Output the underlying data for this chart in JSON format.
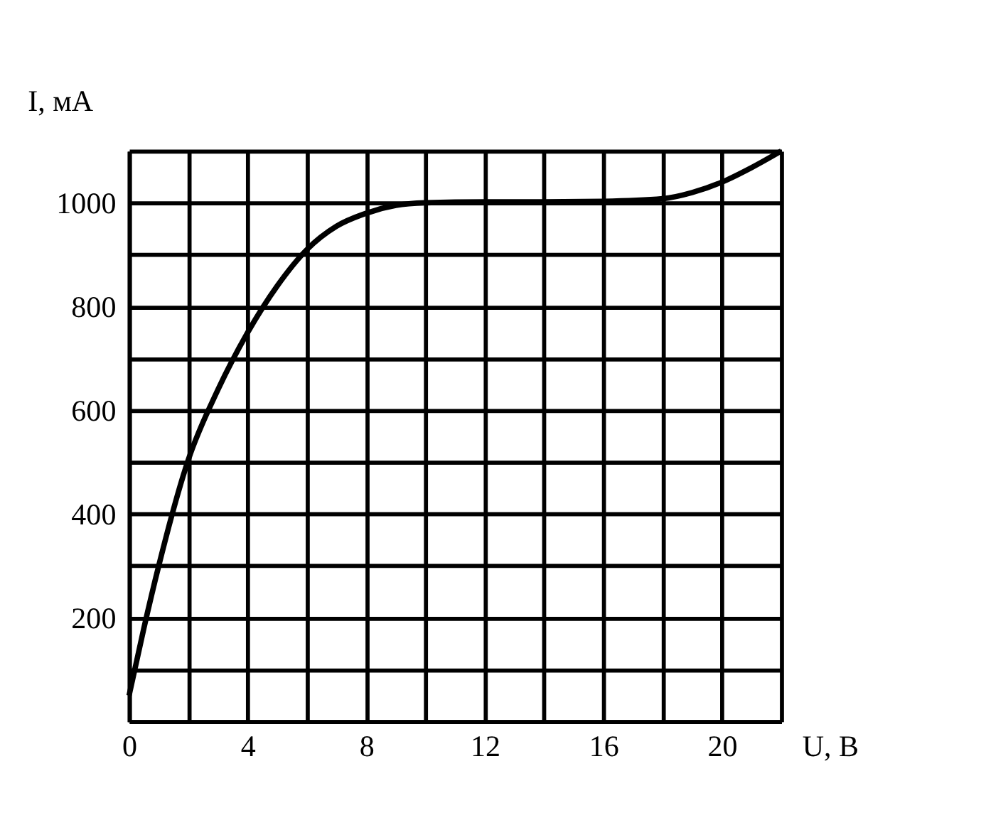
{
  "chart_data": {
    "type": "line",
    "xlabel": "U, В",
    "ylabel": "I, мА",
    "x": [
      0,
      0.5,
      1,
      2,
      3,
      4,
      5,
      6,
      7,
      8,
      9,
      10,
      12,
      14,
      16,
      18,
      19,
      20,
      21,
      22
    ],
    "series": [
      {
        "color": "#000000",
        "values": [
          50,
          180,
          300,
          505,
          640,
          750,
          840,
          910,
          955,
          980,
          995,
          1000,
          1002,
          1002,
          1003,
          1008,
          1020,
          1040,
          1068,
          1100
        ]
      }
    ],
    "xlim": [
      0,
      22
    ],
    "ylim": [
      0,
      1100
    ],
    "xticks": [
      0,
      {
        "value": 2,
        "label": null
      },
      4,
      {
        "value": 6,
        "label": null
      },
      8,
      {
        "value": 10,
        "label": null
      },
      12,
      {
        "value": 14,
        "label": null
      },
      16,
      {
        "value": 18,
        "label": null
      },
      20,
      {
        "value": 22,
        "label": null
      }
    ],
    "yticks": [
      {
        "value": 0,
        "label": null
      },
      {
        "value": 100,
        "label": null
      },
      200,
      {
        "value": 300,
        "label": null
      },
      400,
      {
        "value": 500,
        "label": null
      },
      600,
      {
        "value": 700,
        "label": null
      },
      800,
      {
        "value": 900,
        "label": null
      },
      1000,
      {
        "value": 1100,
        "label": null
      }
    ],
    "grid": true,
    "marker": "none",
    "line_style": "solid"
  }
}
